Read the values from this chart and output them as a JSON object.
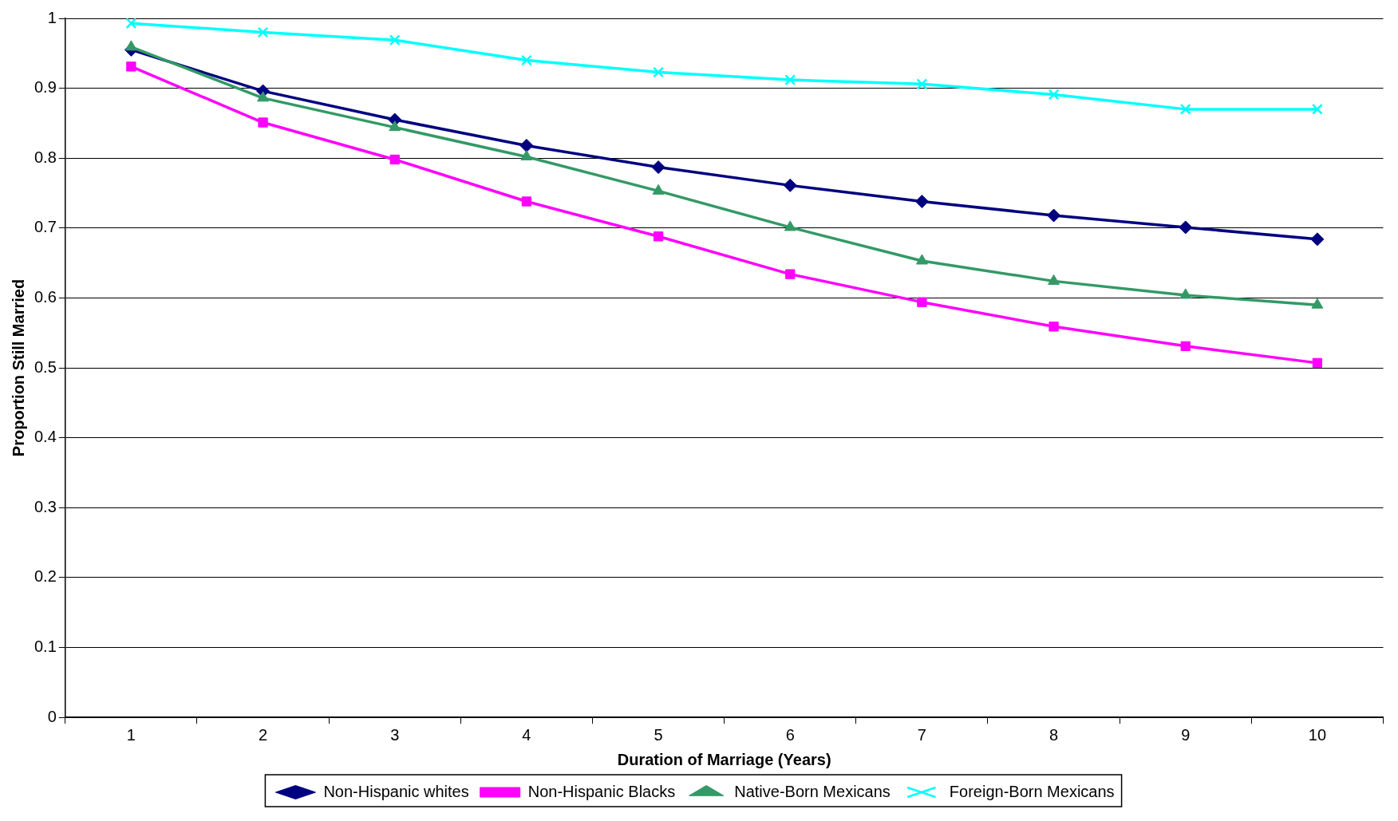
{
  "chart_data": {
    "type": "line",
    "xlabel": "Duration of Marriage (Years)",
    "ylabel": "Proportion Still Married",
    "categories": [
      "1",
      "2",
      "3",
      "4",
      "5",
      "6",
      "7",
      "8",
      "9",
      "10"
    ],
    "series": [
      {
        "name": "Non-Hispanic whites",
        "color": "#000080",
        "marker": "diamond",
        "values": [
          0.955,
          0.896,
          0.855,
          0.818,
          0.787,
          0.761,
          0.738,
          0.718,
          0.701,
          0.684
        ]
      },
      {
        "name": "Non-Hispanic Blacks",
        "color": "#ff00ff",
        "marker": "square",
        "values": [
          0.931,
          0.851,
          0.798,
          0.738,
          0.688,
          0.634,
          0.594,
          0.559,
          0.531,
          0.507
        ]
      },
      {
        "name": "Native-Born Mexicans",
        "color": "#339966",
        "marker": "triangle",
        "values": [
          0.959,
          0.886,
          0.844,
          0.802,
          0.753,
          0.701,
          0.653,
          0.624,
          0.604,
          0.59
        ]
      },
      {
        "name": "Foreign-Born Mexicans",
        "color": "#00ffff",
        "marker": "cross",
        "values": [
          0.993,
          0.98,
          0.969,
          0.94,
          0.923,
          0.912,
          0.906,
          0.891,
          0.87,
          0.87
        ]
      }
    ],
    "ylim": [
      0,
      1
    ],
    "yticks": [
      0,
      0.1,
      0.2,
      0.3,
      0.4,
      0.5,
      0.6,
      0.7,
      0.8,
      0.9,
      1
    ],
    "grid": "y",
    "legend": "bottom"
  }
}
